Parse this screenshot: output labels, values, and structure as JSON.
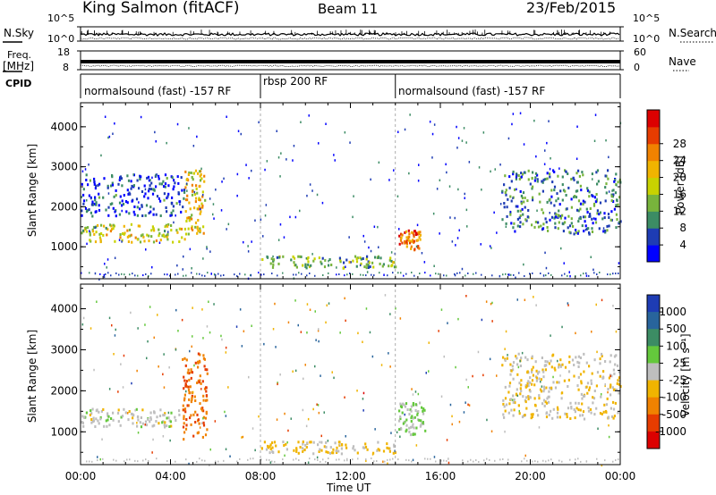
{
  "header": {
    "station": "King Salmon (fitACF)",
    "beam": "Beam 11",
    "date": "23/Feb/2015"
  },
  "strip_labels": {
    "nsky": "N.Sky",
    "freq_top": "Freq.",
    "freq_unit": "[MHz]",
    "cpid": "CPID",
    "nsearch": "N.Search",
    "nave": "Nave"
  },
  "strip_ticks": {
    "nsky_left": [
      "10^5",
      "10^0"
    ],
    "nsky_right": [
      "10^5",
      "10^0"
    ],
    "freq_left": [
      "18",
      "8"
    ],
    "nave_right": [
      "60",
      "0"
    ]
  },
  "cpid_segments": [
    {
      "label": "normalsound (fast) -157 RF",
      "start": 0.0,
      "end": 8.0
    },
    {
      "label": "rbsp 200 RF",
      "start": 8.0,
      "end": 14.0
    },
    {
      "label": "normalsound (fast) -157 RF",
      "start": 14.0,
      "end": 24.0
    }
  ],
  "x_axis": {
    "label": "Time UT",
    "ticks": [
      "00:00",
      "04:00",
      "08:00",
      "12:00",
      "16:00",
      "20:00",
      "00:00"
    ],
    "range": [
      0,
      24
    ]
  },
  "panels": [
    {
      "ylabel": "Slant Range [km]",
      "yticks": [
        "1000",
        "2000",
        "3000",
        "4000"
      ],
      "cbar_label": "Power [dB]",
      "cbar_ticks": [
        "4",
        "8",
        "12",
        "16",
        "20",
        "24",
        "28"
      ],
      "cbar_colors": [
        "#0000ff",
        "#1e3cb4",
        "#3c8c64",
        "#78b43c",
        "#c8d200",
        "#f0b400",
        "#f08200",
        "#e63c00",
        "#dc0000"
      ]
    },
    {
      "ylabel": "Slant Range [km]",
      "yticks": [
        "1000",
        "2000",
        "3000",
        "4000"
      ],
      "cbar_label": "Velocity [m s⁻¹]",
      "cbar_ticks": [
        "1000",
        "500",
        "100",
        "25",
        "-25",
        "-100",
        "-500",
        "-1000"
      ],
      "cbar_colors": [
        "#1e3cb4",
        "#28649c",
        "#3c8c64",
        "#64c83c",
        "#bebebe",
        "#f0b400",
        "#f08200",
        "#e63c00",
        "#dc0000"
      ]
    }
  ],
  "chart_data": [
    {
      "type": "heatmap",
      "title": "King Salmon (fitACF) Beam 11 23/Feb/2015",
      "xlabel": "Time UT",
      "ylabel": "Slant Range [km]",
      "xlim": [
        0,
        24
      ],
      "ylim": [
        200,
        4600
      ],
      "colorbar": {
        "label": "Power [dB]",
        "range": [
          0,
          32
        ]
      },
      "regions": [
        {
          "t": [
            0.0,
            4.6
          ],
          "range_km": [
            1100,
            1550
          ],
          "value_db": 16
        },
        {
          "t": [
            0.0,
            4.6
          ],
          "range_km": [
            1750,
            2800
          ],
          "value_db": 5
        },
        {
          "t": [
            4.6,
            5.5
          ],
          "range_km": [
            1300,
            2900
          ],
          "value_db": 18
        },
        {
          "t": [
            8.0,
            14.0
          ],
          "range_km": [
            450,
            750
          ],
          "value_db": 12
        },
        {
          "t": [
            14.1,
            15.1
          ],
          "range_km": [
            900,
            1400
          ],
          "value_db": 24
        },
        {
          "t": [
            18.7,
            24.0
          ],
          "range_km": [
            1300,
            2900
          ],
          "value_db": 8
        }
      ]
    },
    {
      "type": "heatmap",
      "title": "King Salmon (fitACF) Beam 11 23/Feb/2015",
      "xlabel": "Time UT",
      "ylabel": "Slant Range [km]",
      "xlim": [
        0,
        24
      ],
      "ylim": [
        200,
        4600
      ],
      "colorbar": {
        "label": "Velocity [m s⁻¹]",
        "range": [
          -1000,
          1000
        ]
      },
      "regions": [
        {
          "t": [
            0.0,
            4.4
          ],
          "range_km": [
            1100,
            1550
          ],
          "value_ms": 0
        },
        {
          "t": [
            4.5,
            5.6
          ],
          "range_km": [
            800,
            2900
          ],
          "value_ms": -500
        },
        {
          "t": [
            8.0,
            14.0
          ],
          "range_km": [
            450,
            750
          ],
          "value_ms": -150
        },
        {
          "t": [
            14.1,
            15.3
          ],
          "range_km": [
            900,
            1700
          ],
          "value_ms": 100
        },
        {
          "t": [
            18.7,
            24.0
          ],
          "range_km": [
            1300,
            2900
          ],
          "value_ms": -80
        }
      ]
    }
  ]
}
